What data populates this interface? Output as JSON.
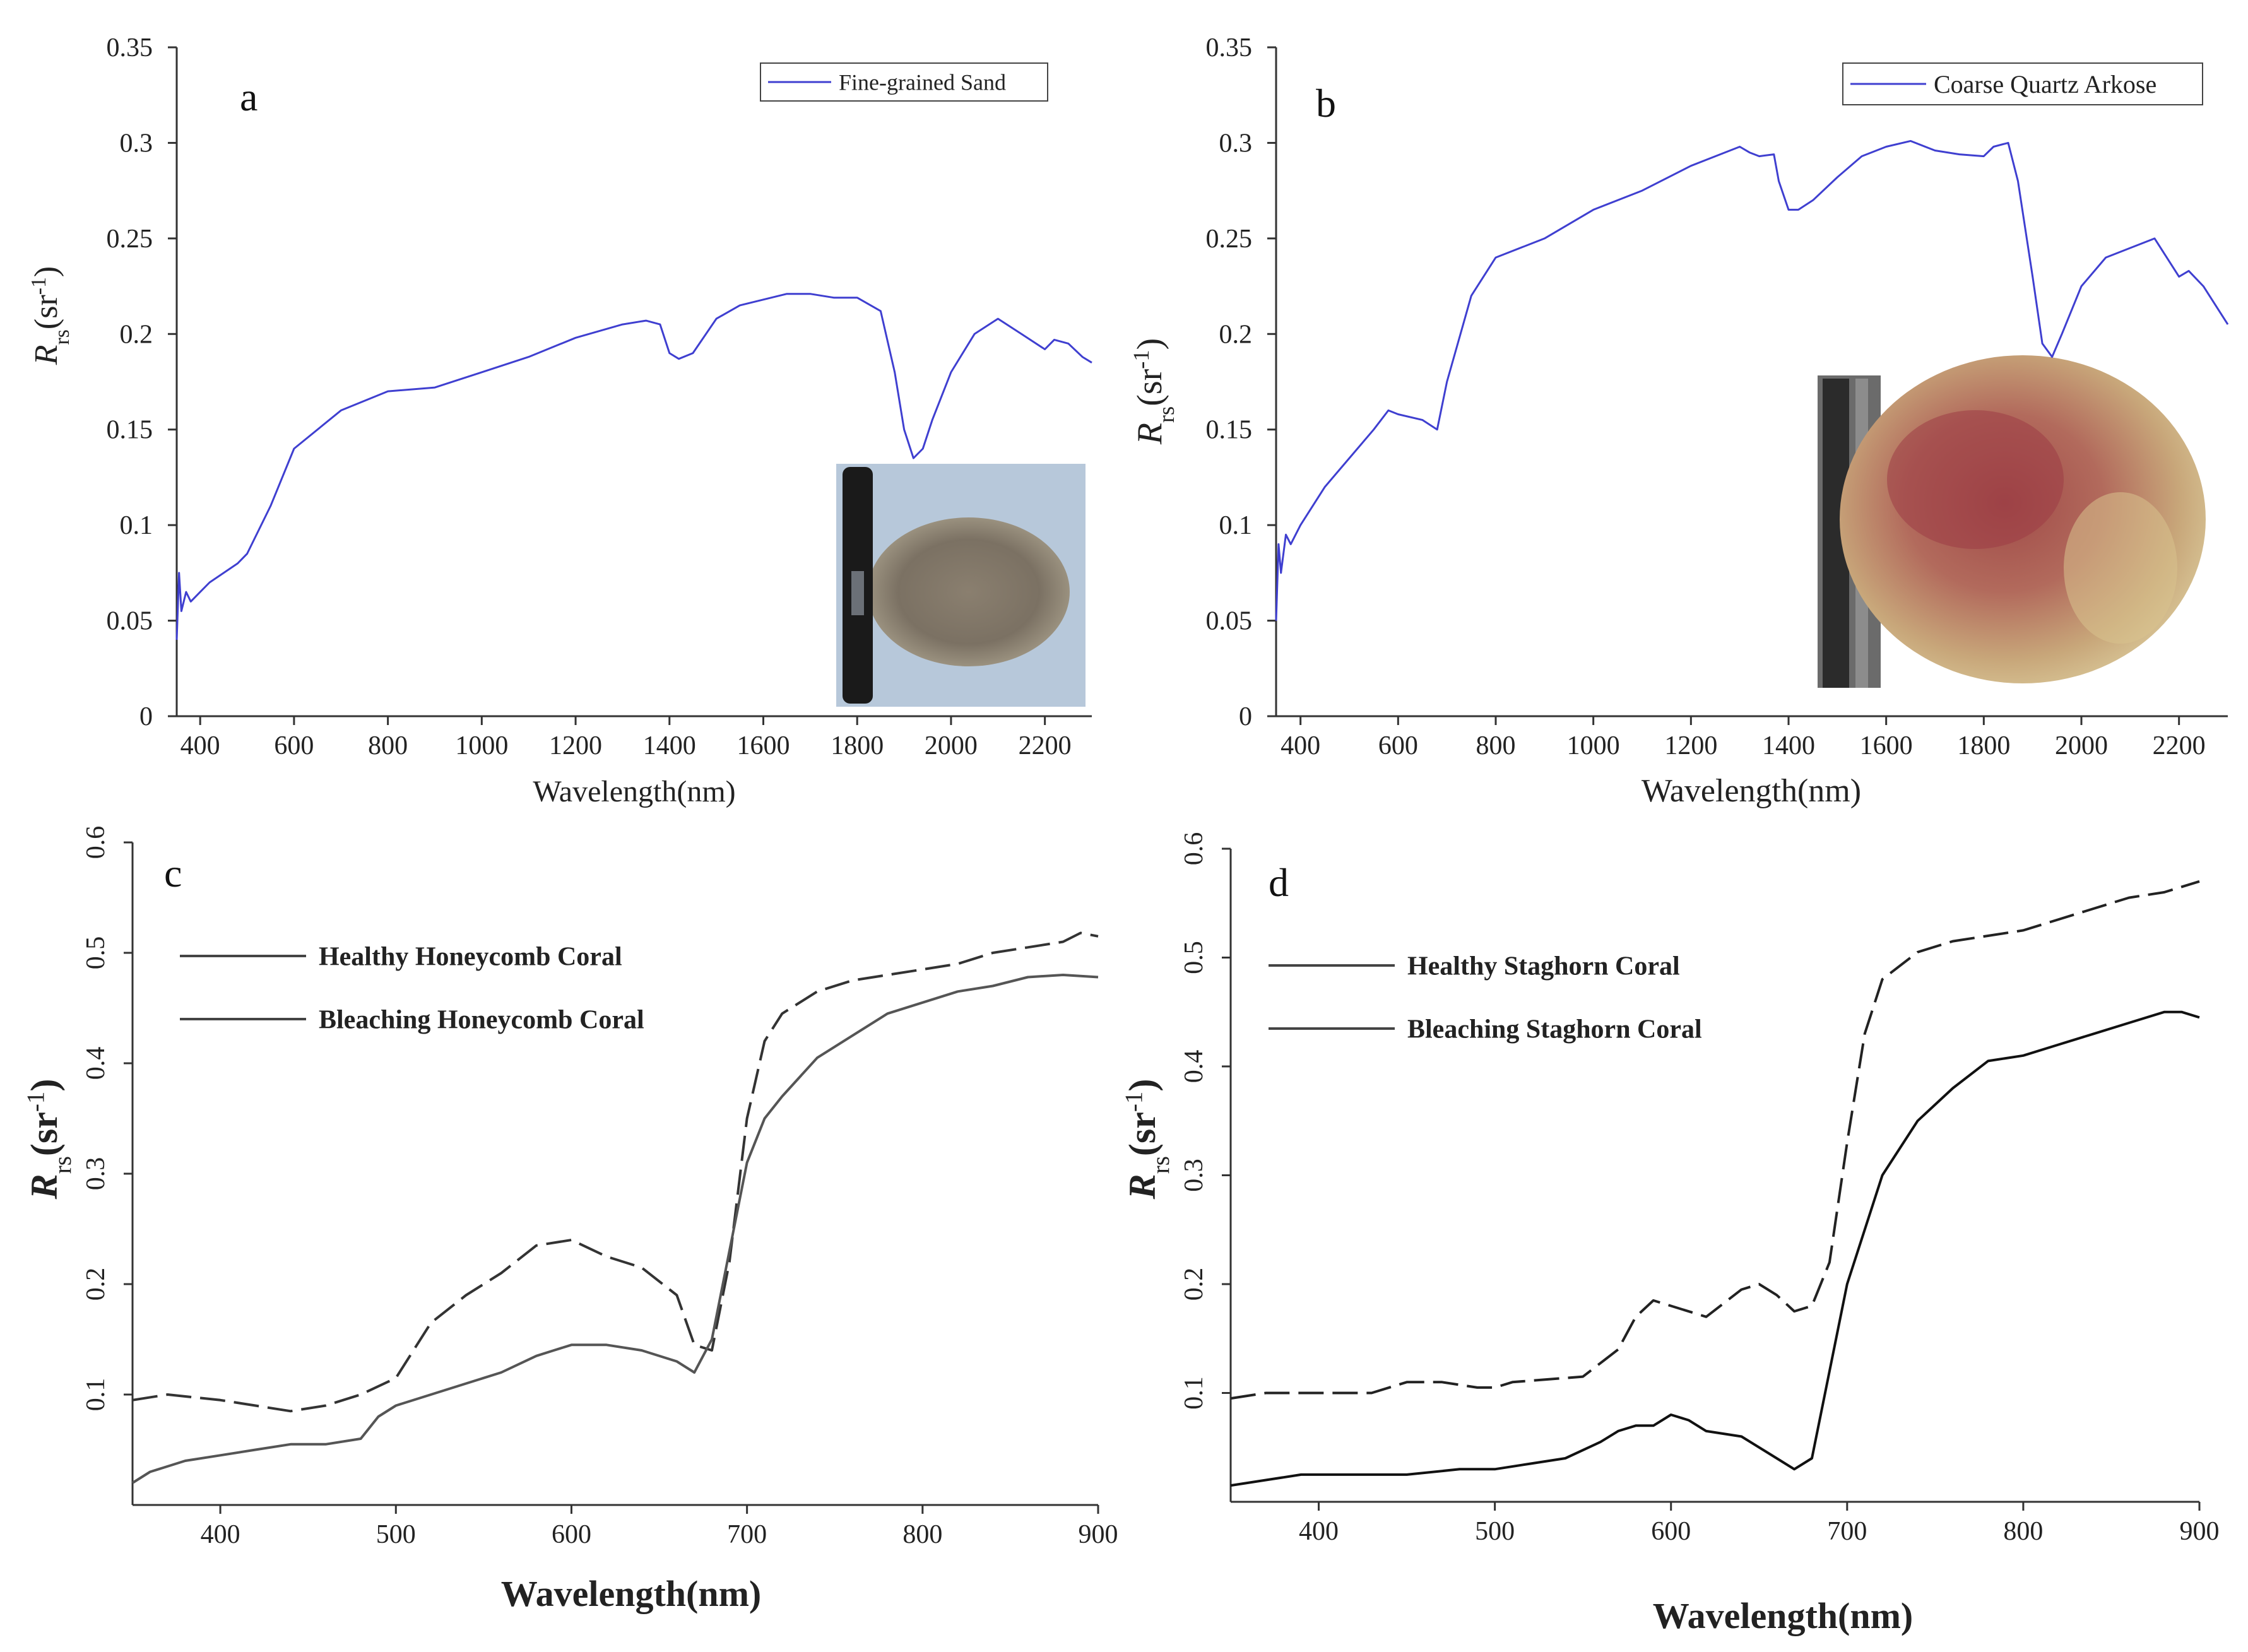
{
  "chart_data": [
    {
      "id": "a",
      "type": "line",
      "panel_label": "a",
      "title": "",
      "xlabel": "Wavelength(nm)",
      "ylabel_main": "R",
      "ylabel_sub": "rs",
      "ylabel_unit": "(sr",
      "ylabel_exp": "-1",
      "ylabel_close": ")",
      "xlim": [
        350,
        2300
      ],
      "ylim": [
        0,
        0.35
      ],
      "xticks": [
        400,
        600,
        800,
        1000,
        1200,
        1400,
        1600,
        1800,
        2000,
        2200
      ],
      "xtick_labels": [
        "400",
        "600",
        "800",
        "1000",
        "1200",
        "1400",
        "1600",
        "1800",
        "2000",
        "2200"
      ],
      "yticks": [
        0,
        0.05,
        0.1,
        0.15,
        0.2,
        0.25,
        0.3,
        0.35
      ],
      "ytick_labels": [
        "0",
        "0.05",
        "0.1",
        "0.15",
        "0.2",
        "0.25",
        "0.3",
        "0.35"
      ],
      "legend_position": "top-right",
      "inset_photo": "fine-grained sand sample with marker pen",
      "series": [
        {
          "name": "Fine-grained Sand",
          "color": "#3f3fd0",
          "style": "solid",
          "x": [
            350,
            355,
            360,
            370,
            380,
            400,
            420,
            450,
            480,
            500,
            550,
            600,
            700,
            800,
            900,
            1000,
            1100,
            1200,
            1300,
            1350,
            1380,
            1400,
            1420,
            1450,
            1500,
            1550,
            1600,
            1650,
            1700,
            1750,
            1800,
            1850,
            1880,
            1900,
            1920,
            1940,
            1960,
            2000,
            2050,
            2100,
            2150,
            2200,
            2220,
            2250,
            2280,
            2300
          ],
          "y": [
            0.04,
            0.075,
            0.055,
            0.065,
            0.06,
            0.065,
            0.07,
            0.075,
            0.08,
            0.085,
            0.11,
            0.14,
            0.16,
            0.17,
            0.172,
            0.18,
            0.188,
            0.198,
            0.205,
            0.207,
            0.205,
            0.19,
            0.187,
            0.19,
            0.208,
            0.215,
            0.218,
            0.221,
            0.221,
            0.219,
            0.219,
            0.212,
            0.18,
            0.15,
            0.135,
            0.14,
            0.155,
            0.18,
            0.2,
            0.208,
            0.2,
            0.192,
            0.197,
            0.195,
            0.188,
            0.185
          ]
        }
      ]
    },
    {
      "id": "b",
      "type": "line",
      "panel_label": "b",
      "title": "",
      "xlabel": "Wavelength(nm)",
      "ylabel_main": "R",
      "ylabel_sub": "rs",
      "ylabel_unit": "(sr",
      "ylabel_exp": "-1",
      "ylabel_close": ")",
      "xlim": [
        350,
        2300
      ],
      "ylim": [
        0,
        0.35
      ],
      "xticks": [
        400,
        600,
        800,
        1000,
        1200,
        1400,
        1600,
        1800,
        2000,
        2200
      ],
      "xtick_labels": [
        "400",
        "600",
        "800",
        "1000",
        "1200",
        "1400",
        "1600",
        "1800",
        "2000",
        "2200"
      ],
      "yticks": [
        0,
        0.05,
        0.1,
        0.15,
        0.2,
        0.25,
        0.3,
        0.35
      ],
      "ytick_labels": [
        "0",
        "0.05",
        "0.1",
        "0.15",
        "0.2",
        "0.25",
        "0.3",
        "0.35"
      ],
      "legend_position": "top-right",
      "inset_photo": "coarse quartz arkose sample with marker pen",
      "series": [
        {
          "name": "Coarse Quartz Arkose",
          "color": "#3f3fd0",
          "style": "solid",
          "x": [
            350,
            355,
            360,
            370,
            380,
            400,
            450,
            500,
            550,
            580,
            600,
            650,
            680,
            700,
            750,
            800,
            900,
            1000,
            1100,
            1200,
            1300,
            1320,
            1340,
            1370,
            1380,
            1400,
            1420,
            1450,
            1500,
            1550,
            1600,
            1650,
            1700,
            1750,
            1800,
            1820,
            1850,
            1870,
            1900,
            1920,
            1940,
            1960,
            2000,
            2050,
            2100,
            2150,
            2200,
            2220,
            2250,
            2300
          ],
          "y": [
            0.05,
            0.09,
            0.075,
            0.095,
            0.09,
            0.1,
            0.12,
            0.135,
            0.15,
            0.16,
            0.158,
            0.155,
            0.15,
            0.175,
            0.22,
            0.24,
            0.25,
            0.265,
            0.275,
            0.288,
            0.298,
            0.295,
            0.293,
            0.294,
            0.28,
            0.265,
            0.265,
            0.27,
            0.282,
            0.293,
            0.298,
            0.301,
            0.296,
            0.294,
            0.293,
            0.298,
            0.3,
            0.28,
            0.23,
            0.195,
            0.188,
            0.2,
            0.225,
            0.24,
            0.245,
            0.25,
            0.23,
            0.233,
            0.225,
            0.205
          ]
        }
      ]
    },
    {
      "id": "c",
      "type": "line",
      "panel_label": "c",
      "title": "",
      "xlabel": "Wavelength(nm)",
      "ylabel_main": "R",
      "ylabel_sub": "rs",
      "ylabel_unit": "(sr",
      "ylabel_exp": "-1",
      "ylabel_close": ")",
      "xlim": [
        350,
        900
      ],
      "ylim": [
        0,
        0.6
      ],
      "xticks": [
        400,
        500,
        600,
        700,
        800,
        900
      ],
      "xtick_labels": [
        "400",
        "500",
        "600",
        "700",
        "800",
        "900"
      ],
      "yticks": [
        0.1,
        0.2,
        0.3,
        0.4,
        0.5,
        0.6
      ],
      "ytick_labels": [
        "0.1",
        "0.2",
        "0.3",
        "0.4",
        "0.5",
        "0.6"
      ],
      "legend_position": "top-left",
      "series": [
        {
          "name": "Healthy Honeycomb Coral",
          "color": "#333333",
          "style": "dashed",
          "x": [
            350,
            370,
            400,
            420,
            440,
            460,
            480,
            500,
            520,
            540,
            560,
            580,
            600,
            620,
            640,
            660,
            670,
            680,
            690,
            700,
            710,
            720,
            740,
            760,
            780,
            800,
            820,
            840,
            860,
            880,
            890,
            900
          ],
          "y": [
            0.095,
            0.1,
            0.095,
            0.09,
            0.085,
            0.09,
            0.1,
            0.115,
            0.165,
            0.19,
            0.21,
            0.235,
            0.24,
            0.225,
            0.215,
            0.19,
            0.145,
            0.14,
            0.22,
            0.35,
            0.42,
            0.445,
            0.465,
            0.475,
            0.48,
            0.485,
            0.49,
            0.5,
            0.505,
            0.51,
            0.518,
            0.515
          ]
        },
        {
          "name": "Bleaching Honeycomb Coral",
          "color": "#555555",
          "style": "solid",
          "x": [
            350,
            360,
            380,
            400,
            420,
            440,
            460,
            480,
            490,
            500,
            520,
            540,
            560,
            580,
            590,
            600,
            620,
            640,
            660,
            670,
            680,
            690,
            700,
            710,
            720,
            740,
            760,
            780,
            800,
            820,
            840,
            860,
            880,
            900
          ],
          "y": [
            0.02,
            0.03,
            0.04,
            0.045,
            0.05,
            0.055,
            0.055,
            0.06,
            0.08,
            0.09,
            0.1,
            0.11,
            0.12,
            0.135,
            0.14,
            0.145,
            0.145,
            0.14,
            0.13,
            0.12,
            0.15,
            0.23,
            0.31,
            0.35,
            0.37,
            0.405,
            0.425,
            0.445,
            0.455,
            0.465,
            0.47,
            0.478,
            0.48,
            0.478
          ]
        }
      ]
    },
    {
      "id": "d",
      "type": "line",
      "panel_label": "d",
      "title": "",
      "xlabel": "Wavelength(nm)",
      "ylabel_main": "R",
      "ylabel_sub": "rs",
      "ylabel_unit": "(sr",
      "ylabel_exp": "-1",
      "ylabel_close": ")",
      "xlim": [
        350,
        900
      ],
      "ylim": [
        0,
        0.6
      ],
      "xticks": [
        400,
        500,
        600,
        700,
        800,
        900
      ],
      "xtick_labels": [
        "400",
        "500",
        "600",
        "700",
        "800",
        "900"
      ],
      "yticks": [
        0.1,
        0.2,
        0.3,
        0.4,
        0.5,
        0.6
      ],
      "ytick_labels": [
        "0.1",
        "0.2",
        "0.3",
        "0.4",
        "0.5",
        "0.6"
      ],
      "legend_position": "top-left",
      "series": [
        {
          "name": "Healthy Staghorn Coral",
          "color": "#222222",
          "style": "dashed",
          "x": [
            350,
            370,
            400,
            430,
            450,
            470,
            490,
            500,
            510,
            550,
            570,
            580,
            590,
            600,
            620,
            640,
            650,
            660,
            670,
            680,
            690,
            700,
            710,
            720,
            740,
            760,
            780,
            800,
            820,
            840,
            860,
            880,
            900
          ],
          "y": [
            0.095,
            0.1,
            0.1,
            0.1,
            0.11,
            0.11,
            0.105,
            0.105,
            0.11,
            0.115,
            0.14,
            0.17,
            0.185,
            0.18,
            0.17,
            0.195,
            0.2,
            0.19,
            0.175,
            0.18,
            0.22,
            0.33,
            0.43,
            0.48,
            0.505,
            0.515,
            0.52,
            0.525,
            0.535,
            0.545,
            0.555,
            0.56,
            0.57
          ]
        },
        {
          "name": "Bleaching Staghorn Coral",
          "color": "#111111",
          "style": "solid",
          "x": [
            350,
            370,
            390,
            420,
            450,
            480,
            500,
            520,
            540,
            560,
            570,
            580,
            590,
            600,
            610,
            620,
            640,
            660,
            670,
            680,
            690,
            700,
            710,
            720,
            740,
            760,
            780,
            800,
            820,
            840,
            860,
            880,
            890,
            900
          ],
          "y": [
            0.015,
            0.02,
            0.025,
            0.025,
            0.025,
            0.03,
            0.03,
            0.035,
            0.04,
            0.055,
            0.065,
            0.07,
            0.07,
            0.08,
            0.075,
            0.065,
            0.06,
            0.04,
            0.03,
            0.04,
            0.12,
            0.2,
            0.25,
            0.3,
            0.35,
            0.38,
            0.405,
            0.41,
            0.42,
            0.43,
            0.44,
            0.45,
            0.45,
            0.445
          ]
        }
      ]
    }
  ]
}
